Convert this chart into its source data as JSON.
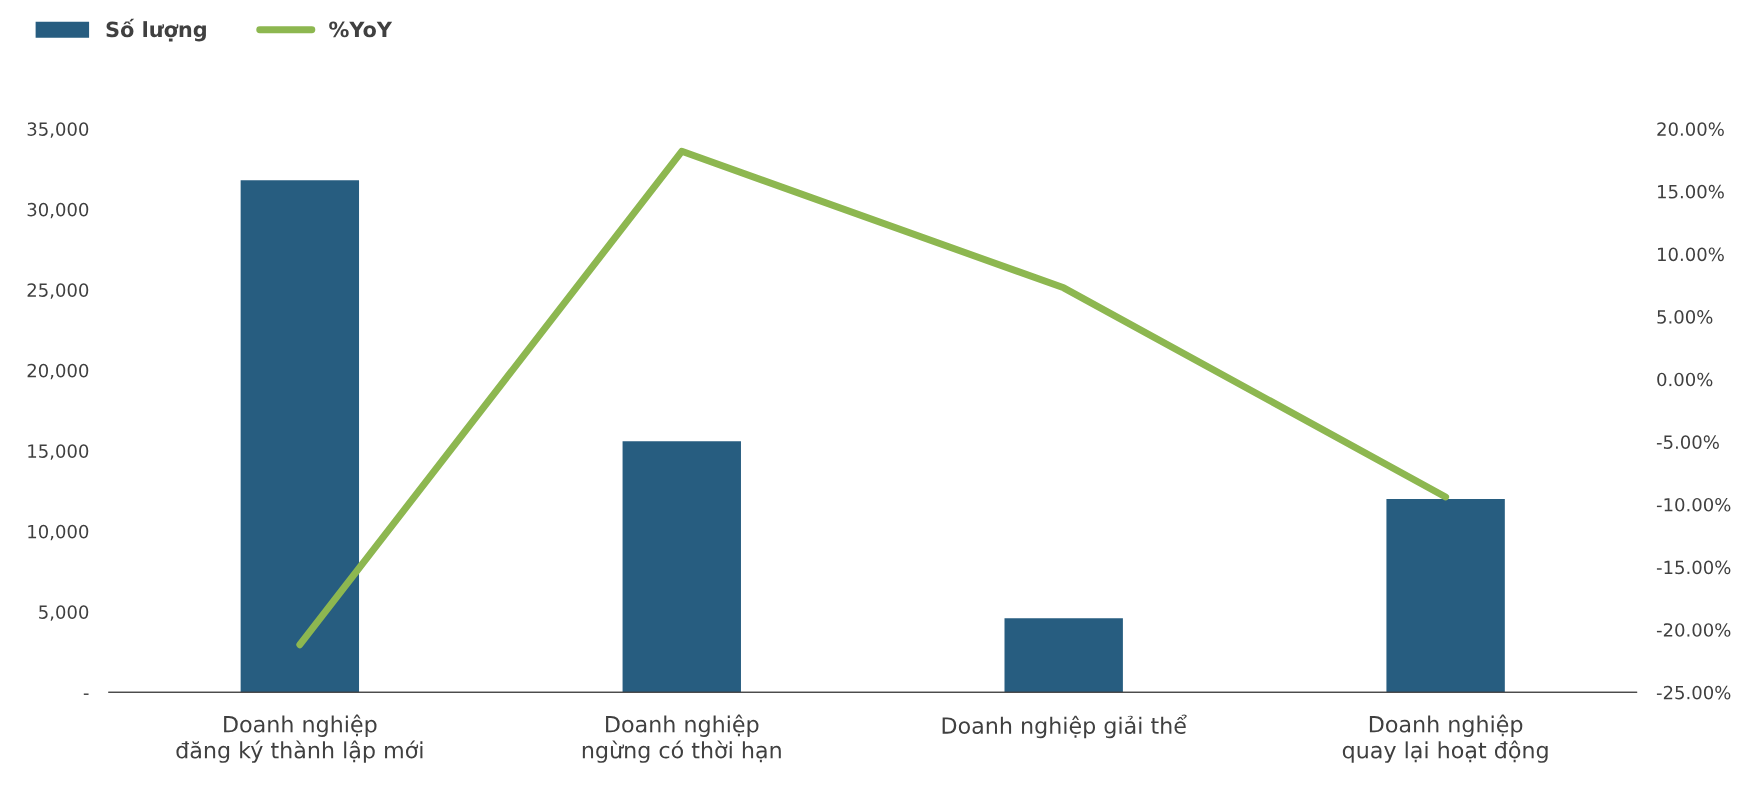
{
  "chart_data": {
    "type": "bar",
    "categories": [
      "Doanh nghiệp\nđăng ký thành lập mới",
      "Doanh nghiệp\nngừng có thời hạn",
      "Doanh nghiệp giải thể",
      "Doanh nghiệp\nquay lại hoạt động"
    ],
    "series": [
      {
        "name": "Số lượng",
        "color": "#275d80",
        "values": [
          31800,
          15600,
          4600,
          12000
        ]
      },
      {
        "name": "%YoY",
        "type": "line",
        "axis": "y2",
        "color": "#8db750",
        "values": [
          -21.2,
          18.2,
          7.3,
          -9.4
        ]
      }
    ],
    "ylim": [
      0,
      35000
    ],
    "yticks": [
      {
        "value": 0,
        "label": "-"
      },
      {
        "value": 5000,
        "label": "5,000"
      },
      {
        "value": 10000,
        "label": "10,000"
      },
      {
        "value": 15000,
        "label": "15,000"
      },
      {
        "value": 20000,
        "label": "20,000"
      },
      {
        "value": 25000,
        "label": "25,000"
      },
      {
        "value": 30000,
        "label": "30,000"
      },
      {
        "value": 35000,
        "label": "35,000"
      }
    ],
    "y2lim": [
      -25,
      20
    ],
    "y2ticks": [
      {
        "value": -25,
        "label": "-25.00%"
      },
      {
        "value": -20,
        "label": "-20.00%"
      },
      {
        "value": -15,
        "label": "-15.00%"
      },
      {
        "value": -10,
        "label": "-10.00%"
      },
      {
        "value": -5,
        "label": "-5.00%"
      },
      {
        "value": 0,
        "label": "0.00%"
      },
      {
        "value": 5,
        "label": "5.00%"
      },
      {
        "value": 10,
        "label": "10.00%"
      },
      {
        "value": 15,
        "label": "15.00%"
      },
      {
        "value": 20,
        "label": "20.00%"
      }
    ],
    "grid": false,
    "legend": "top left",
    "marker": "none",
    "line_style": "solid"
  }
}
